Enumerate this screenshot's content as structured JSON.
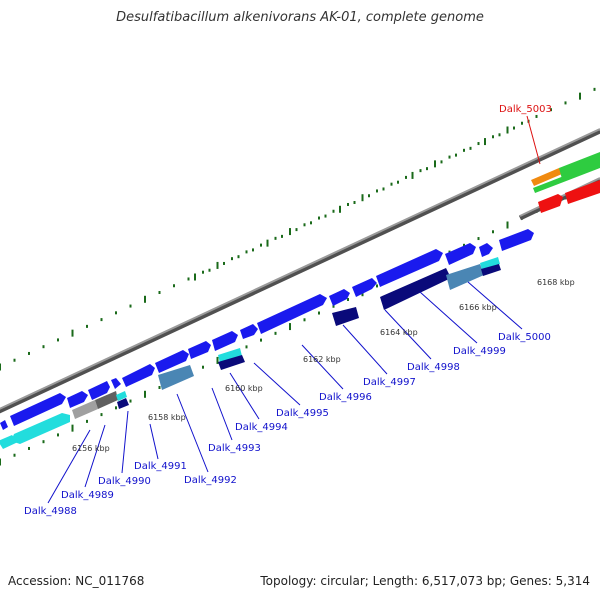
{
  "title": "Desulfatibacillum alkenivorans AK-01, complete genome",
  "footer": {
    "accession": "Accession: NC_011768",
    "summary": "Topology: circular; Length: 6,517,073 bp; Genes: 5,314"
  },
  "colors": {
    "forward_gene": "#1a1aee",
    "reverse_gene": "#22dddd",
    "dark_gene": "#0a0a7a",
    "steel_gene": "#4a86b4",
    "grey_gene": "#a0a0a0",
    "rna_gene": "#2ecc40",
    "red_gene": "#ee1111",
    "orange_gene": "#f08a10",
    "backbone": "#808080",
    "tick": "#1a6a1a",
    "label_link": "#1111cc",
    "highlight_label": "#dd1111"
  },
  "scale_labels": [
    "6156 kbp",
    "6158 kbp",
    "6160 kbp",
    "6162 kbp",
    "6164 kbp",
    "6166 kbp",
    "6168 kbp"
  ],
  "gene_labels": [
    {
      "id": "g4988",
      "text": "Dalk_4988",
      "color": "blue"
    },
    {
      "id": "g4989",
      "text": "Dalk_4989",
      "color": "blue"
    },
    {
      "id": "g4990",
      "text": "Dalk_4990",
      "color": "blue"
    },
    {
      "id": "g4991",
      "text": "Dalk_4991",
      "color": "blue"
    },
    {
      "id": "g4992",
      "text": "Dalk_4992",
      "color": "blue"
    },
    {
      "id": "g4993",
      "text": "Dalk_4993",
      "color": "blue"
    },
    {
      "id": "g4994",
      "text": "Dalk_4994",
      "color": "blue"
    },
    {
      "id": "g4995",
      "text": "Dalk_4995",
      "color": "blue"
    },
    {
      "id": "g4996",
      "text": "Dalk_4996",
      "color": "blue"
    },
    {
      "id": "g4997",
      "text": "Dalk_4997",
      "color": "blue"
    },
    {
      "id": "g4998",
      "text": "Dalk_4998",
      "color": "blue"
    },
    {
      "id": "g4999",
      "text": "Dalk_4999",
      "color": "blue"
    },
    {
      "id": "g5000",
      "text": "Dalk_5000",
      "color": "blue"
    },
    {
      "id": "g5003",
      "text": "Dalk_5003",
      "color": "red"
    }
  ]
}
